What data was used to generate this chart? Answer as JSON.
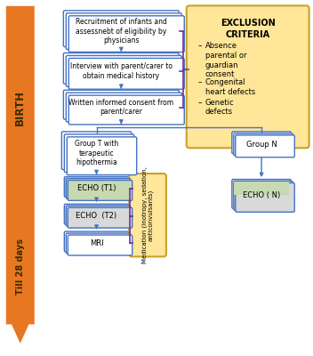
{
  "bg_color": "#ffffff",
  "birth_text": "BIRTH",
  "till_text": "Till 28 days",
  "exclusion_title": "EXCLUSION\nCRITERIA",
  "exclusion_items": [
    "Absence\nparental or\nguardian\nconsent",
    "Congenital\nheart defects",
    "Genetic\ndefects"
  ],
  "box1_text": "Recruitment of infants and\nassessnebt of eligibility by\nphysicians",
  "box2_text": "Interview with parent/carer to\nobtain medical history",
  "box3_text": "Written informed consent from\nparent/carer",
  "box_groupT_text": "Group T with\nterapeutic\nhipothermia",
  "box_echo1_text": "ECHO (T1)",
  "box_echo2_text": "ECHO  (T2)",
  "box_mri_text": "MRI",
  "box_med_text": "Medication (inotropy, sedation,\nanticonvulsants)",
  "box_groupN_text": "Group N",
  "box_echoN_text": "ECHO ( N)",
  "blue_dark": "#4472c4",
  "blue_mid": "#4472c4",
  "blue_light": "#dce6f1",
  "yellow_light": "#ffe699",
  "yellow_border": "#c9a227",
  "green_light": "#c6d9b0",
  "gray_light": "#d9d9d9",
  "orange_arrow": "#e87722",
  "purple": "#7030a0"
}
